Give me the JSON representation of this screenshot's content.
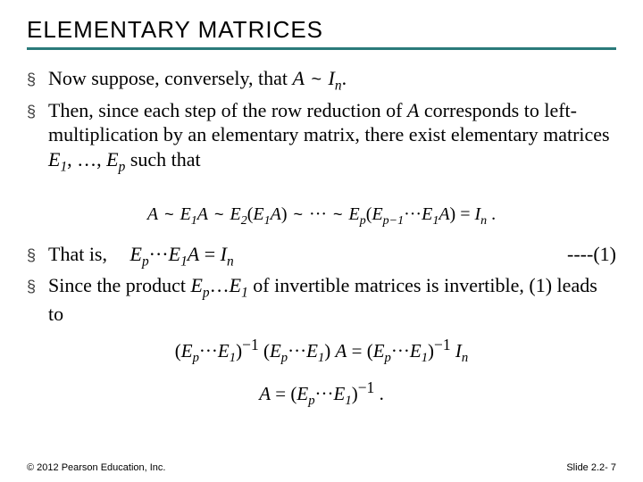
{
  "title": "ELEMENTARY MATRICES",
  "bullets": {
    "b1_pre": "Now suppose, conversely, that ",
    "b1_math": "A ~ Iₙ",
    "b1_post": ".",
    "b2": "Then, since each step of the row reduction of ",
    "b2_A": "A",
    "b2_rest": " corresponds to left-multiplication by an elementary matrix, there exist elementary matrices ",
    "b2_E1": "E",
    "b2_E1sub": "1",
    "b2_mid": ", …, ",
    "b2_Ep": "E",
    "b2_Epsub": "p",
    "b2_end": " such that",
    "eq_main": "A ~ E₁A ~ E₂(E₁A) ~ ··· ~ Eₚ(Eₚ₋₁···E₁A) = Iₙ .",
    "b3": "That is,",
    "eq1": "Eₚ ··· E₁A = Iₙ",
    "tag1": "----(1)",
    "b4_pre": "Since the product ",
    "b4_E": "E",
    "b4_psub": "p",
    "b4_mid": "…",
    "b4_E1": "E",
    "b4_1sub": "1",
    "b4_rest": " of invertible matrices is invertible, (1) leads to",
    "eq2": "(Eₚ ··· E₁)⁻¹ (Eₚ ··· E₁) A = (Eₚ ··· E₁)⁻¹ Iₙ",
    "eq3": "A = (Eₚ ··· E₁)⁻¹ ."
  },
  "footer": {
    "left": "© 2012 Pearson Education, Inc.",
    "right": "Slide 2.2- 7"
  },
  "colors": {
    "rule": "#2a7a7a",
    "text": "#000000",
    "bg": "#ffffff"
  },
  "fonts": {
    "title_family": "Arial",
    "title_size_pt": 20,
    "body_family": "Times New Roman",
    "body_size_pt": 17,
    "footer_size_pt": 8
  }
}
